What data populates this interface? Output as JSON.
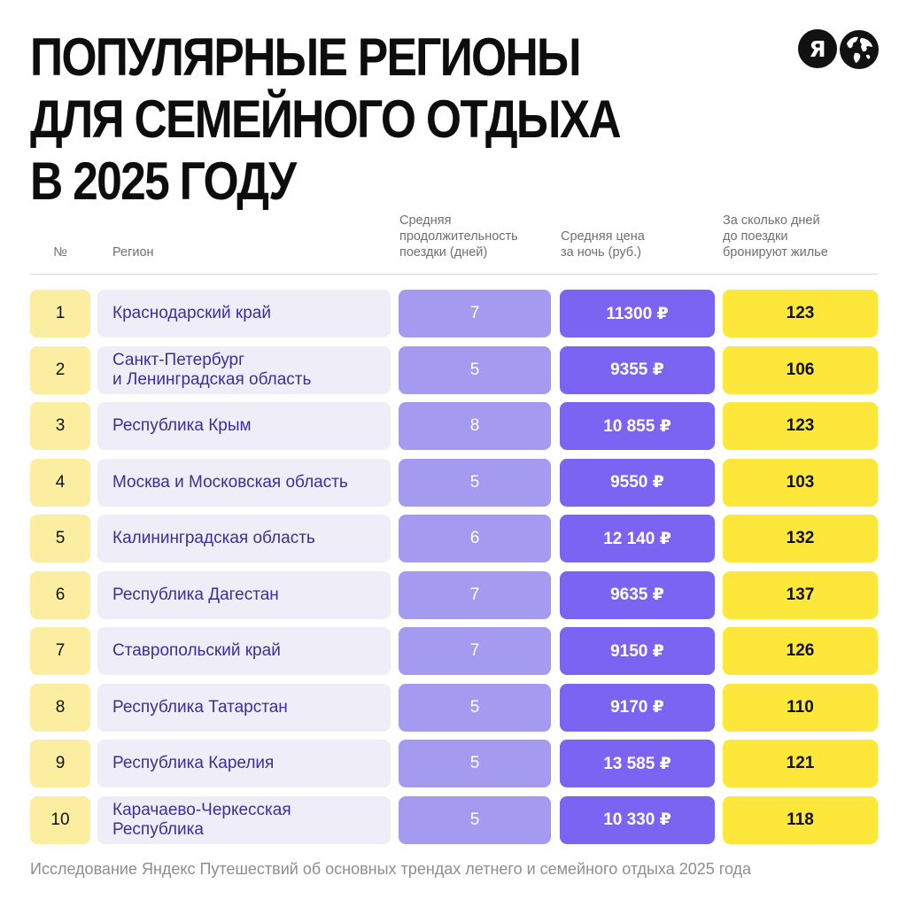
{
  "title_lines": [
    "ПОПУЛЯРНЫЕ РЕГИОНЫ",
    "ДЛЯ СЕМЕЙНОГО ОТДЫХА",
    "В 2025 ГОДУ"
  ],
  "logo": {
    "letter": "Я",
    "icons": [
      "yandex-logo-icon",
      "globe-icon"
    ]
  },
  "colors": {
    "num_bg": "#fbeea0",
    "region_bg": "#efeef8",
    "region_text": "#3b2e9e",
    "duration_bg": "#a49af0",
    "price_bg": "#7c64f2",
    "booking_bg": "#fde73a"
  },
  "chart_data": {
    "type": "table",
    "title": "ПОПУЛЯРНЫЕ РЕГИОНЫ ДЛЯ СЕМЕЙНОГО ОТДЫХА В 2025 ГОДУ",
    "columns": [
      "№",
      "Регион",
      "Средняя продолжительность поездки (дней)",
      "Средняя цена за ночь (руб.)",
      "За сколько дней до поездки бронируют жилье"
    ],
    "column_lines": [
      [
        "№"
      ],
      [
        "Регион"
      ],
      [
        "Средняя",
        "продолжительность",
        "поездки (дней)"
      ],
      [
        "Средняя цена",
        "за ночь (руб.)"
      ],
      [
        "За сколько дней",
        "до поездки",
        "бронируют жилье"
      ]
    ],
    "rows": [
      {
        "num": "1",
        "region": [
          "Краснодарский край"
        ],
        "duration": 7,
        "price": "11300 ₽",
        "booking": 123
      },
      {
        "num": "2",
        "region": [
          "Санкт-Петербург",
          "и Ленинградская область"
        ],
        "duration": 5,
        "price": "9355 ₽",
        "booking": 106
      },
      {
        "num": "3",
        "region": [
          "Республика Крым"
        ],
        "duration": 8,
        "price": "10 855 ₽",
        "booking": 123
      },
      {
        "num": "4",
        "region": [
          "Москва и Московская область"
        ],
        "duration": 5,
        "price": "9550 ₽",
        "booking": 103
      },
      {
        "num": "5",
        "region": [
          "Калининградская область"
        ],
        "duration": 6,
        "price": "12 140 ₽",
        "booking": 132
      },
      {
        "num": "6",
        "region": [
          "Республика Дагестан"
        ],
        "duration": 7,
        "price": "9635 ₽",
        "booking": 137
      },
      {
        "num": "7",
        "region": [
          "Ставропольский край"
        ],
        "duration": 7,
        "price": "9150 ₽",
        "booking": 126
      },
      {
        "num": "8",
        "region": [
          "Республика Татарстан"
        ],
        "duration": 5,
        "price": "9170 ₽",
        "booking": 110
      },
      {
        "num": "9",
        "region": [
          "Республика Карелия"
        ],
        "duration": 5,
        "price": "13 585 ₽",
        "booking": 121
      },
      {
        "num": "10",
        "region": [
          "Карачаево-Черкесская",
          "Республика"
        ],
        "duration": 5,
        "price": "10 330 ₽",
        "booking": 118
      }
    ]
  },
  "footnote": "Исследование Яндекс Путешествий об основных трендах летнего и семейного отдыха 2025 года"
}
